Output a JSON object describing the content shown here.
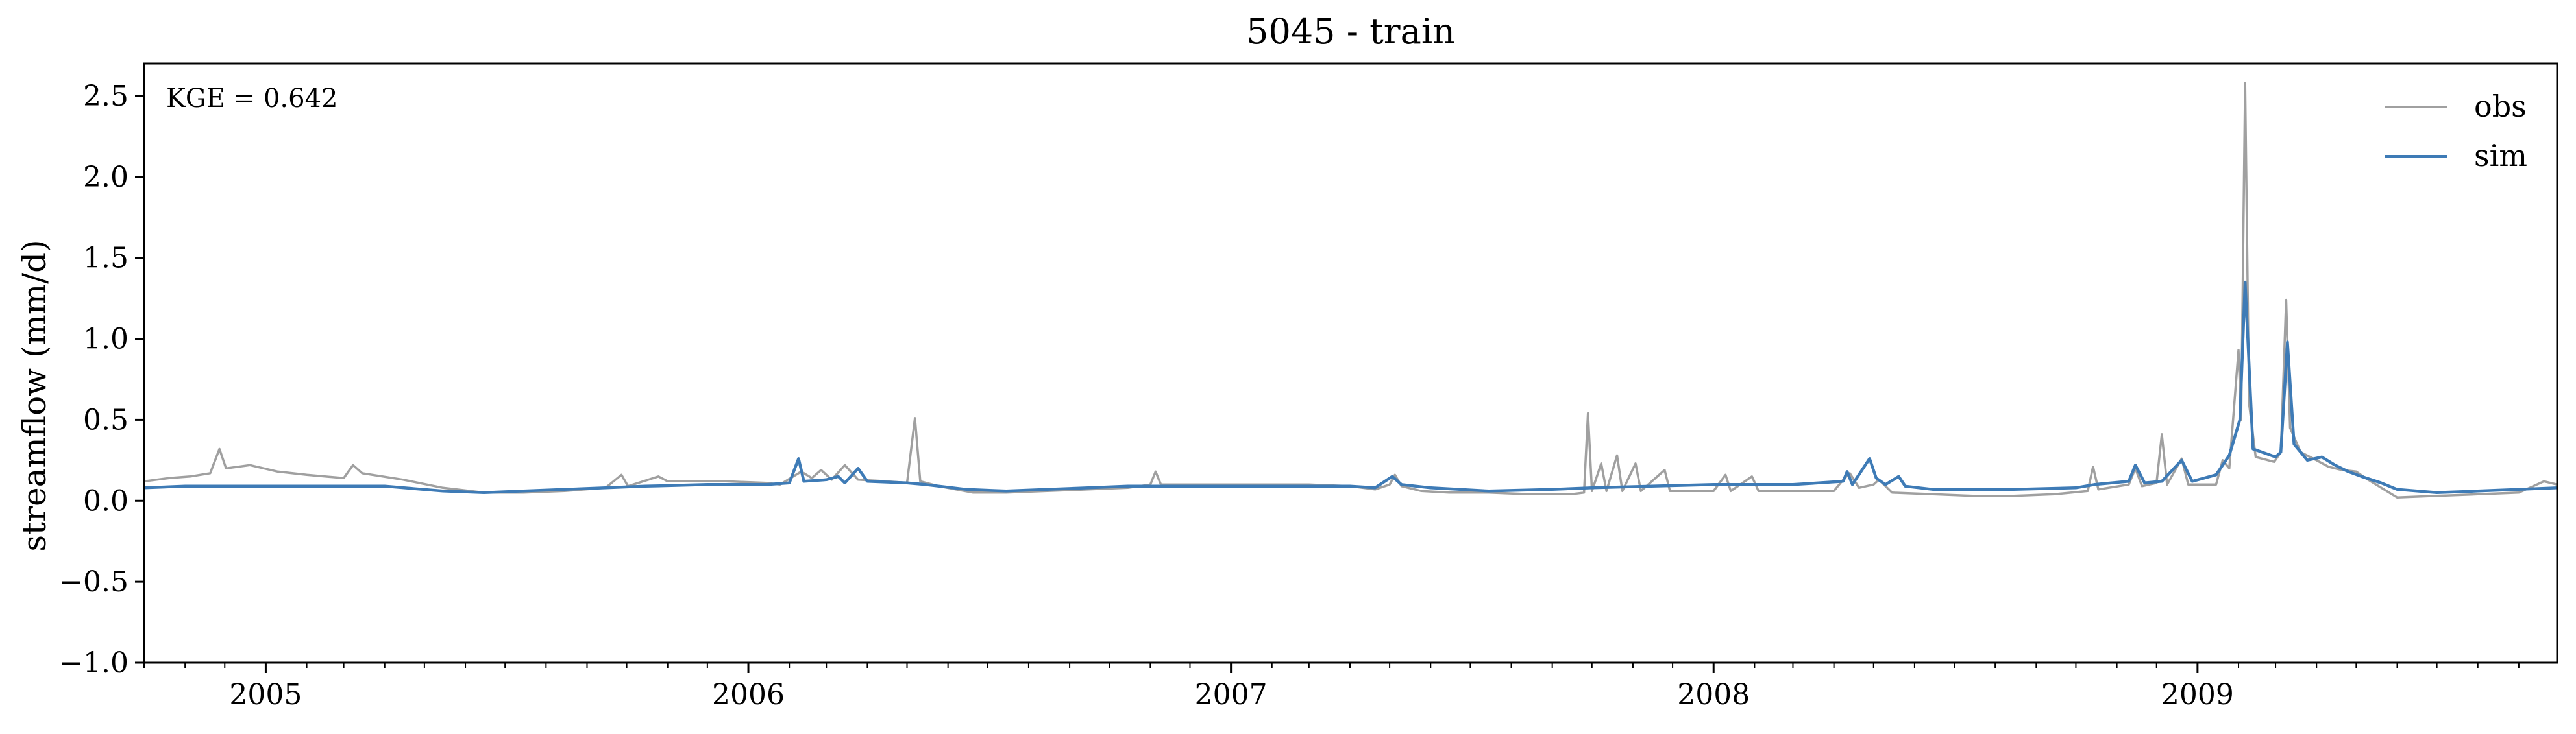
{
  "chart_data": {
    "type": "line",
    "title": "5045 - train",
    "ylabel": "streamflow (mm/d)",
    "xlabel": "",
    "ylim": [
      -1.0,
      2.7
    ],
    "xlim": [
      "2004-10-01",
      "2009-09-30"
    ],
    "yticks": [
      -1.0,
      -0.5,
      0.0,
      0.5,
      1.0,
      1.5,
      2.0,
      2.5
    ],
    "ytick_labels": [
      "−1.0",
      "−0.5",
      "0.0",
      "0.5",
      "1.0",
      "1.5",
      "2.0",
      "2.5"
    ],
    "xticks": [
      "2005-01-01",
      "2006-01-01",
      "2007-01-01",
      "2008-01-01",
      "2009-01-01"
    ],
    "xtick_labels": [
      "2005",
      "2006",
      "2007",
      "2008",
      "2009"
    ],
    "annotation": "KGE = 0.642",
    "legend_position": "top-right",
    "grid": false,
    "series": [
      {
        "name": "obs",
        "color": "#a0a0a0",
        "points": [
          [
            "2004-10-01",
            0.12
          ],
          [
            "2004-10-20",
            0.14
          ],
          [
            "2004-11-05",
            0.15
          ],
          [
            "2004-11-20",
            0.17
          ],
          [
            "2004-11-27",
            0.32
          ],
          [
            "2004-12-02",
            0.2
          ],
          [
            "2004-12-20",
            0.22
          ],
          [
            "2005-01-10",
            0.18
          ],
          [
            "2005-02-01",
            0.16
          ],
          [
            "2005-03-01",
            0.14
          ],
          [
            "2005-03-08",
            0.22
          ],
          [
            "2005-03-15",
            0.17
          ],
          [
            "2005-04-15",
            0.13
          ],
          [
            "2005-05-15",
            0.08
          ],
          [
            "2005-06-15",
            0.05
          ],
          [
            "2005-07-15",
            0.05
          ],
          [
            "2005-08-15",
            0.06
          ],
          [
            "2005-09-15",
            0.08
          ],
          [
            "2005-09-27",
            0.16
          ],
          [
            "2005-10-02",
            0.09
          ],
          [
            "2005-10-25",
            0.15
          ],
          [
            "2005-11-01",
            0.12
          ],
          [
            "2005-12-15",
            0.12
          ],
          [
            "2006-01-15",
            0.11
          ],
          [
            "2006-01-25",
            0.1
          ],
          [
            "2006-02-10",
            0.18
          ],
          [
            "2006-02-18",
            0.14
          ],
          [
            "2006-02-25",
            0.19
          ],
          [
            "2006-03-05",
            0.13
          ],
          [
            "2006-03-15",
            0.22
          ],
          [
            "2006-03-25",
            0.13
          ],
          [
            "2006-04-15",
            0.12
          ],
          [
            "2006-05-01",
            0.11
          ],
          [
            "2006-05-07",
            0.51
          ],
          [
            "2006-05-11",
            0.12
          ],
          [
            "2006-05-25",
            0.09
          ],
          [
            "2006-06-20",
            0.05
          ],
          [
            "2006-07-15",
            0.05
          ],
          [
            "2006-08-15",
            0.06
          ],
          [
            "2006-09-15",
            0.07
          ],
          [
            "2006-10-15",
            0.08
          ],
          [
            "2006-11-01",
            0.1
          ],
          [
            "2006-11-05",
            0.18
          ],
          [
            "2006-11-09",
            0.1
          ],
          [
            "2007-01-01",
            0.1
          ],
          [
            "2007-01-15",
            0.1
          ],
          [
            "2007-03-01",
            0.1
          ],
          [
            "2007-04-01",
            0.09
          ],
          [
            "2007-04-20",
            0.07
          ],
          [
            "2007-05-01",
            0.1
          ],
          [
            "2007-05-05",
            0.16
          ],
          [
            "2007-05-10",
            0.09
          ],
          [
            "2007-05-25",
            0.06
          ],
          [
            "2007-06-15",
            0.05
          ],
          [
            "2007-07-15",
            0.05
          ],
          [
            "2007-08-15",
            0.04
          ],
          [
            "2007-09-15",
            0.04
          ],
          [
            "2007-09-25",
            0.05
          ],
          [
            "2007-09-28",
            0.54
          ],
          [
            "2007-10-01",
            0.06
          ],
          [
            "2007-10-08",
            0.23
          ],
          [
            "2007-10-12",
            0.06
          ],
          [
            "2007-10-20",
            0.28
          ],
          [
            "2007-10-24",
            0.06
          ],
          [
            "2007-11-03",
            0.23
          ],
          [
            "2007-11-07",
            0.06
          ],
          [
            "2007-11-25",
            0.19
          ],
          [
            "2007-11-29",
            0.06
          ],
          [
            "2008-01-01",
            0.06
          ],
          [
            "2008-01-10",
            0.16
          ],
          [
            "2008-01-14",
            0.06
          ],
          [
            "2008-01-30",
            0.15
          ],
          [
            "2008-02-04",
            0.06
          ],
          [
            "2008-03-01",
            0.06
          ],
          [
            "2008-04-01",
            0.06
          ],
          [
            "2008-04-08",
            0.13
          ],
          [
            "2008-04-13",
            0.17
          ],
          [
            "2008-04-20",
            0.08
          ],
          [
            "2008-05-01",
            0.1
          ],
          [
            "2008-05-05",
            0.13
          ],
          [
            "2008-05-15",
            0.05
          ],
          [
            "2008-06-15",
            0.04
          ],
          [
            "2008-07-15",
            0.03
          ],
          [
            "2008-08-15",
            0.03
          ],
          [
            "2008-09-15",
            0.04
          ],
          [
            "2008-10-10",
            0.06
          ],
          [
            "2008-10-14",
            0.21
          ],
          [
            "2008-10-18",
            0.07
          ],
          [
            "2008-11-10",
            0.1
          ],
          [
            "2008-11-15",
            0.2
          ],
          [
            "2008-11-20",
            0.09
          ],
          [
            "2008-12-01",
            0.11
          ],
          [
            "2008-12-05",
            0.41
          ],
          [
            "2008-12-09",
            0.1
          ],
          [
            "2008-12-20",
            0.26
          ],
          [
            "2008-12-25",
            0.1
          ],
          [
            "2009-01-15",
            0.1
          ],
          [
            "2009-01-20",
            0.25
          ],
          [
            "2009-01-25",
            0.2
          ],
          [
            "2009-02-01",
            0.93
          ],
          [
            "2009-02-03",
            0.5
          ],
          [
            "2009-02-06",
            2.58
          ],
          [
            "2009-02-09",
            0.6
          ],
          [
            "2009-02-14",
            0.27
          ],
          [
            "2009-02-28",
            0.24
          ],
          [
            "2009-03-05",
            0.3
          ],
          [
            "2009-03-09",
            1.24
          ],
          [
            "2009-03-12",
            0.45
          ],
          [
            "2009-03-20",
            0.3
          ],
          [
            "2009-04-01",
            0.25
          ],
          [
            "2009-04-10",
            0.21
          ],
          [
            "2009-04-20",
            0.19
          ],
          [
            "2009-05-01",
            0.18
          ],
          [
            "2009-05-10",
            0.13
          ],
          [
            "2009-05-20",
            0.08
          ],
          [
            "2009-06-01",
            0.02
          ],
          [
            "2009-07-01",
            0.03
          ],
          [
            "2009-08-01",
            0.04
          ],
          [
            "2009-09-01",
            0.05
          ],
          [
            "2009-09-20",
            0.12
          ],
          [
            "2009-09-30",
            0.1
          ]
        ]
      },
      {
        "name": "sim",
        "color": "#3e7bb6",
        "points": [
          [
            "2004-10-01",
            0.08
          ],
          [
            "2004-11-01",
            0.09
          ],
          [
            "2005-01-01",
            0.09
          ],
          [
            "2005-04-01",
            0.09
          ],
          [
            "2005-05-15",
            0.06
          ],
          [
            "2005-06-15",
            0.05
          ],
          [
            "2005-07-15",
            0.06
          ],
          [
            "2005-08-15",
            0.07
          ],
          [
            "2005-09-15",
            0.08
          ],
          [
            "2005-10-15",
            0.09
          ],
          [
            "2005-12-01",
            0.1
          ],
          [
            "2006-01-15",
            0.1
          ],
          [
            "2006-02-01",
            0.11
          ],
          [
            "2006-02-08",
            0.26
          ],
          [
            "2006-02-12",
            0.12
          ],
          [
            "2006-03-01",
            0.13
          ],
          [
            "2006-03-10",
            0.15
          ],
          [
            "2006-03-15",
            0.11
          ],
          [
            "2006-03-25",
            0.2
          ],
          [
            "2006-04-01",
            0.12
          ],
          [
            "2006-05-01",
            0.11
          ],
          [
            "2006-05-15",
            0.1
          ],
          [
            "2006-06-15",
            0.07
          ],
          [
            "2006-07-15",
            0.06
          ],
          [
            "2006-08-15",
            0.07
          ],
          [
            "2006-09-15",
            0.08
          ],
          [
            "2006-10-15",
            0.09
          ],
          [
            "2007-01-01",
            0.09
          ],
          [
            "2007-04-01",
            0.09
          ],
          [
            "2007-04-20",
            0.08
          ],
          [
            "2007-05-03",
            0.15
          ],
          [
            "2007-05-10",
            0.1
          ],
          [
            "2007-06-01",
            0.08
          ],
          [
            "2007-07-15",
            0.06
          ],
          [
            "2007-09-01",
            0.07
          ],
          [
            "2007-10-01",
            0.08
          ],
          [
            "2007-11-15",
            0.09
          ],
          [
            "2008-01-01",
            0.1
          ],
          [
            "2008-03-01",
            0.1
          ],
          [
            "2008-04-08",
            0.12
          ],
          [
            "2008-04-11",
            0.18
          ],
          [
            "2008-04-15",
            0.1
          ],
          [
            "2008-04-28",
            0.26
          ],
          [
            "2008-05-03",
            0.14
          ],
          [
            "2008-05-10",
            0.1
          ],
          [
            "2008-05-20",
            0.15
          ],
          [
            "2008-05-25",
            0.09
          ],
          [
            "2008-06-15",
            0.07
          ],
          [
            "2008-08-15",
            0.07
          ],
          [
            "2008-10-01",
            0.08
          ],
          [
            "2008-10-15",
            0.1
          ],
          [
            "2008-11-10",
            0.12
          ],
          [
            "2008-11-15",
            0.22
          ],
          [
            "2008-11-22",
            0.11
          ],
          [
            "2008-12-05",
            0.12
          ],
          [
            "2008-12-20",
            0.25
          ],
          [
            "2008-12-28",
            0.12
          ],
          [
            "2009-01-15",
            0.16
          ],
          [
            "2009-01-25",
            0.28
          ],
          [
            "2009-02-02",
            0.5
          ],
          [
            "2009-02-06",
            1.35
          ],
          [
            "2009-02-12",
            0.32
          ],
          [
            "2009-03-01",
            0.27
          ],
          [
            "2009-03-05",
            0.3
          ],
          [
            "2009-03-10",
            0.98
          ],
          [
            "2009-03-15",
            0.35
          ],
          [
            "2009-03-25",
            0.25
          ],
          [
            "2009-04-05",
            0.27
          ],
          [
            "2009-04-15",
            0.22
          ],
          [
            "2009-04-25",
            0.18
          ],
          [
            "2009-05-05",
            0.15
          ],
          [
            "2009-05-20",
            0.11
          ],
          [
            "2009-06-01",
            0.07
          ],
          [
            "2009-07-01",
            0.05
          ],
          [
            "2009-08-01",
            0.06
          ],
          [
            "2009-09-01",
            0.07
          ],
          [
            "2009-09-30",
            0.08
          ]
        ]
      }
    ]
  }
}
